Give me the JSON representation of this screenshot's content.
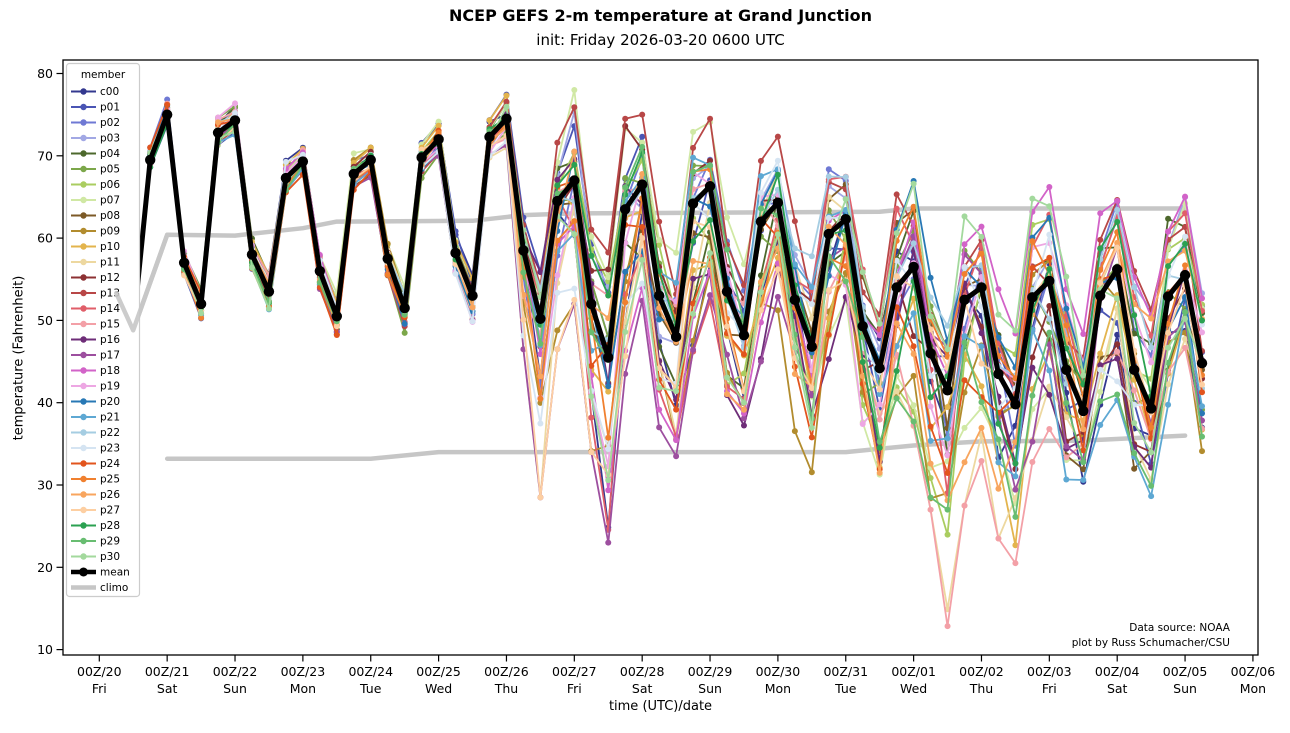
{
  "title": "NCEP GEFS 2-m temperature at Grand Junction",
  "subtitle": "init: Friday 2026-03-20 0600 UTC",
  "credit": [
    "Data source: NOAA",
    "plot by Russ Schumacher/CSU"
  ],
  "y_axis": {
    "label": "temperature (Fahrenheit)",
    "ticks": [
      10,
      20,
      30,
      40,
      50,
      60,
      70,
      80
    ]
  },
  "x_axis": {
    "label": "time (UTC)/date",
    "ticks": [
      {
        "top": "00Z/20",
        "day": "Fri"
      },
      {
        "top": "00Z/21",
        "day": "Sat"
      },
      {
        "top": "00Z/22",
        "day": "Sun"
      },
      {
        "top": "00Z/23",
        "day": "Mon"
      },
      {
        "top": "00Z/24",
        "day": "Tue"
      },
      {
        "top": "00Z/25",
        "day": "Wed"
      },
      {
        "top": "00Z/26",
        "day": "Thu"
      },
      {
        "top": "00Z/27",
        "day": "Fri"
      },
      {
        "top": "00Z/28",
        "day": "Sat"
      },
      {
        "top": "00Z/29",
        "day": "Sun"
      },
      {
        "top": "00Z/30",
        "day": "Mon"
      },
      {
        "top": "00Z/31",
        "day": "Tue"
      },
      {
        "top": "00Z/01",
        "day": "Wed"
      },
      {
        "top": "00Z/02",
        "day": "Thu"
      },
      {
        "top": "00Z/03",
        "day": "Fri"
      },
      {
        "top": "00Z/04",
        "day": "Sat"
      },
      {
        "top": "00Z/05",
        "day": "Sun"
      },
      {
        "top": "00Z/06",
        "day": "Mon"
      }
    ]
  },
  "legend": {
    "title": "member",
    "mean_label": "mean",
    "climo_label": "climo",
    "mean_color": "#000000",
    "climo_color": "#c6c6c6"
  },
  "chart_data": {
    "type": "line",
    "xlabel": "time (UTC)/date",
    "ylabel": "temperature (Fahrenheit)",
    "ylim": [
      9.2,
      81.6
    ],
    "xlim_hours": [
      -13,
      412
    ],
    "grid": false,
    "legend_position": "upper left",
    "hours": [
      6,
      12,
      18,
      24,
      30,
      36,
      42,
      48,
      54,
      60,
      66,
      72,
      78,
      84,
      90,
      96,
      102,
      108,
      114,
      120,
      126,
      132,
      138,
      144,
      150,
      156,
      162,
      168,
      174,
      180,
      186,
      192,
      198,
      204,
      210,
      216,
      222,
      228,
      234,
      240,
      246,
      252,
      258,
      264,
      270,
      276,
      282,
      288,
      294,
      300,
      306,
      312,
      318,
      324,
      330,
      336,
      342,
      348,
      354,
      360,
      366,
      372,
      378,
      384,
      390
    ],
    "mean": [
      54.5,
      49.0,
      69.5,
      75.0,
      57.0,
      52.0,
      72.8,
      74.3,
      58.0,
      53.5,
      67.3,
      69.3,
      56.0,
      50.5,
      67.8,
      69.5,
      57.5,
      51.5,
      69.8,
      72.0,
      58.2,
      53.0,
      72.3,
      74.5,
      58.5,
      50.2,
      64.5,
      67.0,
      52.0,
      45.5,
      63.5,
      66.5,
      53.0,
      48.0,
      64.2,
      66.3,
      53.5,
      48.2,
      62.0,
      64.3,
      52.5,
      46.8,
      60.5,
      62.3,
      49.3,
      44.2,
      54.0,
      56.5,
      46.0,
      41.5,
      52.5,
      54.0,
      43.5,
      39.8,
      52.8,
      54.8,
      44.0,
      39.0,
      53.0,
      56.2,
      44.0,
      39.3,
      52.9,
      55.5,
      44.8
    ],
    "envelope_lo": [
      1.2,
      1.5,
      1.5,
      1.5,
      2.0,
      2.2,
      1.8,
      1.8,
      2.2,
      2.5,
      2.2,
      2.0,
      2.5,
      3.0,
      2.5,
      2.2,
      2.8,
      3.2,
      2.5,
      2.5,
      3.0,
      3.5,
      2.5,
      3.5,
      12.0,
      21.7,
      18.0,
      15.0,
      18.0,
      22.5,
      20.0,
      15.0,
      16.0,
      14.5,
      18.0,
      14.0,
      14.0,
      11.0,
      17.0,
      16.0,
      16.0,
      15.3,
      17.0,
      14.0,
      16.0,
      17.7,
      18.0,
      23.0,
      19.0,
      29.5,
      25.0,
      23.0,
      20.0,
      19.3,
      20.0,
      18.0,
      15.0,
      14.0,
      16.0,
      16.0,
      14.0,
      13.3,
      15.0,
      10.5,
      11.3
    ],
    "envelope_hi": [
      1.2,
      1.5,
      1.8,
      2.0,
      2.0,
      2.2,
      2.2,
      2.5,
      2.2,
      2.5,
      2.5,
      2.0,
      2.2,
      2.8,
      2.5,
      2.2,
      2.5,
      3.0,
      2.8,
      2.5,
      2.8,
      3.2,
      3.0,
      4.2,
      4.0,
      8.0,
      8.0,
      11.5,
      10.0,
      13.5,
      11.0,
      8.5,
      9.0,
      10.5,
      9.0,
      8.2,
      9.0,
      10.0,
      10.0,
      9.7,
      10.0,
      11.0,
      9.0,
      7.0,
      10.0,
      8.0,
      13.0,
      11.5,
      12.0,
      10.5,
      12.0,
      11.0,
      11.0,
      9.2,
      12.0,
      12.2,
      12.0,
      10.0,
      11.0,
      9.5,
      12.0,
      12.0,
      11.0,
      10.2,
      9.7
    ],
    "climo_upper": {
      "hours": [
        6,
        12,
        24,
        48,
        72,
        84,
        132,
        150,
        168,
        276,
        288,
        384
      ],
      "values": [
        53.3,
        48.8,
        60.4,
        60.3,
        61.2,
        62.0,
        62.1,
        62.8,
        63.0,
        63.2,
        63.6,
        63.6
      ]
    },
    "climo_lower": {
      "hours": [
        24,
        96,
        120,
        264,
        288,
        312,
        348,
        372,
        384
      ],
      "values": [
        33.2,
        33.2,
        34.0,
        34.0,
        34.8,
        35.3,
        35.4,
        35.8,
        36.0
      ]
    },
    "members": [
      {
        "name": "c00",
        "color": "#33388f"
      },
      {
        "name": "p01",
        "color": "#4a55b4"
      },
      {
        "name": "p02",
        "color": "#6f79d4"
      },
      {
        "name": "p03",
        "color": "#a2a8e4"
      },
      {
        "name": "p04",
        "color": "#4d682c"
      },
      {
        "name": "p05",
        "color": "#7ca74a"
      },
      {
        "name": "p06",
        "color": "#aacd60"
      },
      {
        "name": "p07",
        "color": "#d0e8a4"
      },
      {
        "name": "p08",
        "color": "#7c5a27"
      },
      {
        "name": "p09",
        "color": "#b28c2e"
      },
      {
        "name": "p10",
        "color": "#e3b44d"
      },
      {
        "name": "p11",
        "color": "#edd8a0"
      },
      {
        "name": "p12",
        "color": "#8c3133"
      },
      {
        "name": "p13",
        "color": "#b84747"
      },
      {
        "name": "p14",
        "color": "#e05e69"
      },
      {
        "name": "p15",
        "color": "#f3a0a7"
      },
      {
        "name": "p16",
        "color": "#6e2d78"
      },
      {
        "name": "p17",
        "color": "#9d4f9f"
      },
      {
        "name": "p18",
        "color": "#d263c8"
      },
      {
        "name": "p19",
        "color": "#eda7e3"
      },
      {
        "name": "p20",
        "color": "#2878b5"
      },
      {
        "name": "p21",
        "color": "#5ea8d3"
      },
      {
        "name": "p22",
        "color": "#a5cde2"
      },
      {
        "name": "p23",
        "color": "#d5e4f2"
      },
      {
        "name": "p24",
        "color": "#e2541d"
      },
      {
        "name": "p25",
        "color": "#f0802f"
      },
      {
        "name": "p26",
        "color": "#f8a55e"
      },
      {
        "name": "p27",
        "color": "#fdcfa2"
      },
      {
        "name": "p28",
        "color": "#2ba151"
      },
      {
        "name": "p29",
        "color": "#68bd71"
      },
      {
        "name": "p30",
        "color": "#a3d99d"
      }
    ]
  }
}
